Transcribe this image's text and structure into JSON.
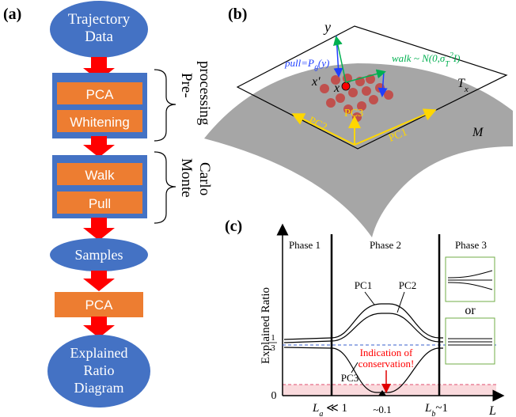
{
  "panel_a": {
    "label": "(a)",
    "trajectory": [
      "Trajectory",
      "Data"
    ],
    "pca1": "PCA",
    "whitening": "Whitening",
    "pre_brace": [
      "Pre-",
      "processing"
    ],
    "walk": "Walk",
    "pull": "Pull",
    "mc_brace": [
      "Monte",
      "Carlo"
    ],
    "samples": "Samples",
    "pca2": "PCA",
    "explained": [
      "Explained",
      "Ratio",
      "Diagram"
    ]
  },
  "panel_b": {
    "label": "(b)",
    "y": "y",
    "pull": "pull=P",
    "pull_sub": "θ",
    "pull_tail": "(y)",
    "walk": "walk ~ N(0,σ",
    "walk_sub": "T",
    "walk_sup": "2",
    "walk_tail": "I)",
    "xprime": "x'",
    "x": "x",
    "tx": "T",
    "tx_sub": "x",
    "pc1": "PC1",
    "pc2": "PC2",
    "pc3": "PC3",
    "m": "M"
  },
  "panel_c": {
    "label": "(c)",
    "phase1": "Phase 1",
    "phase2": "Phase 2",
    "phase3": "Phase 3",
    "pc1": "PC1",
    "pc2": "PC2",
    "pc3": "PC3",
    "or": "or",
    "ylabel": "Explained Ratio",
    "third_num": "1",
    "third_den": "3",
    "zero": "0",
    "la": "L",
    "la_sub": "a",
    "la_tail": " ≪ 1",
    "lb": "L",
    "lb_sub": "b",
    "lb_tail": "~1",
    "tick": "~0.1",
    "xlabel": "L",
    "annotation": [
      "Indication of",
      "conservation!"
    ]
  },
  "colors": {
    "blue": "#4472C4",
    "orange": "#ED7D31",
    "red": "#FF0000",
    "gray": "#A6A6A6",
    "yellow": "#FFFF00",
    "green": "#00B050",
    "pink": "#FADADD"
  }
}
